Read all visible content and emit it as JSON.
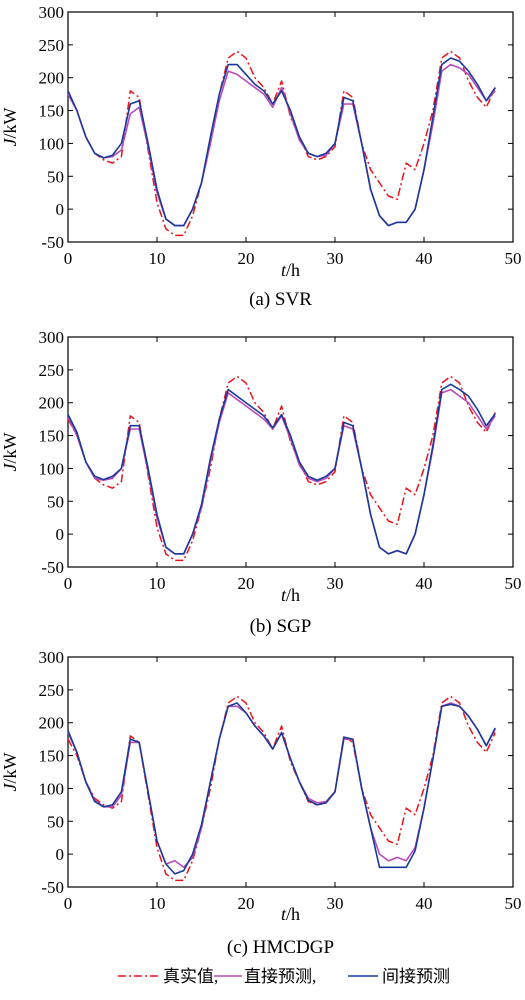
{
  "legend": {
    "entries": [
      {
        "label": "真实值,",
        "color": "#e8141c",
        "dash": "8,3,2,3"
      },
      {
        "label": "直接预测,",
        "color": "#b84cb8",
        "dash": ""
      },
      {
        "label": "间接预测",
        "color": "#1a3a9a",
        "dash": ""
      }
    ]
  },
  "chart_data": [
    {
      "type": "line",
      "caption": "(a)  SVR",
      "xlabel_italic": "t",
      "xlabel_unit": "/h",
      "ylabel_italic": "J",
      "ylabel_unit": "/kW",
      "xlim": [
        0,
        50
      ],
      "ylim": [
        -50,
        300
      ],
      "xticks": [
        0,
        10,
        20,
        30,
        40,
        50
      ],
      "yticks": [
        -50,
        0,
        50,
        100,
        150,
        200,
        250,
        300
      ],
      "series": [
        {
          "name": "真实值",
          "color": "#e8141c",
          "dash": "8,3,2,3",
          "x": [
            0,
            1,
            2,
            3,
            4,
            5,
            6,
            7,
            8,
            9,
            10,
            11,
            12,
            13,
            14,
            15,
            16,
            17,
            18,
            19,
            20,
            21,
            22,
            23,
            24,
            25,
            26,
            27,
            28,
            29,
            30,
            31,
            32,
            33,
            34,
            35,
            36,
            37,
            38,
            39,
            40,
            41,
            42,
            43,
            44,
            45,
            46,
            47,
            48
          ],
          "y": [
            175,
            150,
            110,
            85,
            75,
            70,
            80,
            180,
            170,
            90,
            10,
            -30,
            -40,
            -40,
            -10,
            40,
            100,
            175,
            230,
            240,
            230,
            200,
            185,
            160,
            195,
            140,
            110,
            80,
            75,
            80,
            95,
            180,
            170,
            100,
            60,
            40,
            20,
            15,
            70,
            60,
            100,
            150,
            230,
            240,
            230,
            195,
            170,
            155,
            185
          ]
        },
        {
          "name": "直接预测",
          "color": "#b84cb8",
          "dash": "",
          "x": [
            0,
            1,
            2,
            3,
            4,
            5,
            6,
            7,
            8,
            9,
            10,
            11,
            12,
            13,
            14,
            15,
            16,
            17,
            18,
            19,
            20,
            21,
            22,
            23,
            24,
            25,
            26,
            27,
            28,
            29,
            30,
            31,
            32,
            33,
            34,
            35,
            36,
            37,
            38,
            39,
            40,
            41,
            42,
            43,
            44,
            45,
            46,
            47,
            48
          ],
          "y": [
            175,
            150,
            110,
            85,
            78,
            80,
            90,
            145,
            155,
            95,
            25,
            -15,
            -25,
            -25,
            0,
            40,
            100,
            165,
            210,
            205,
            195,
            185,
            175,
            155,
            185,
            145,
            105,
            85,
            80,
            82,
            100,
            160,
            160,
            100,
            30,
            -10,
            -25,
            -20,
            -20,
            0,
            60,
            130,
            210,
            220,
            215,
            205,
            185,
            165,
            180
          ]
        },
        {
          "name": "间接预测",
          "color": "#1a3a9a",
          "dash": "",
          "x": [
            0,
            1,
            2,
            3,
            4,
            5,
            6,
            7,
            8,
            9,
            10,
            11,
            12,
            13,
            14,
            15,
            16,
            17,
            18,
            19,
            20,
            21,
            22,
            23,
            24,
            25,
            26,
            27,
            28,
            29,
            30,
            31,
            32,
            33,
            34,
            35,
            36,
            37,
            38,
            39,
            40,
            41,
            42,
            43,
            44,
            45,
            46,
            47,
            48
          ],
          "y": [
            180,
            150,
            110,
            85,
            78,
            82,
            100,
            160,
            165,
            100,
            30,
            -15,
            -25,
            -25,
            0,
            40,
            110,
            175,
            220,
            220,
            205,
            190,
            180,
            160,
            180,
            150,
            110,
            85,
            80,
            85,
            100,
            170,
            165,
            100,
            30,
            -10,
            -25,
            -20,
            -20,
            0,
            60,
            140,
            220,
            230,
            225,
            210,
            190,
            165,
            185
          ]
        }
      ]
    },
    {
      "type": "line",
      "caption": "(b)  SGP",
      "xlabel_italic": "t",
      "xlabel_unit": "/h",
      "ylabel_italic": "J",
      "ylabel_unit": "/kW",
      "xlim": [
        0,
        50
      ],
      "ylim": [
        -50,
        300
      ],
      "xticks": [
        0,
        10,
        20,
        30,
        40,
        50
      ],
      "yticks": [
        -50,
        0,
        50,
        100,
        150,
        200,
        250,
        300
      ],
      "series": [
        {
          "name": "真实值",
          "color": "#e8141c",
          "dash": "8,3,2,3",
          "x": [
            0,
            1,
            2,
            3,
            4,
            5,
            6,
            7,
            8,
            9,
            10,
            11,
            12,
            13,
            14,
            15,
            16,
            17,
            18,
            19,
            20,
            21,
            22,
            23,
            24,
            25,
            26,
            27,
            28,
            29,
            30,
            31,
            32,
            33,
            34,
            35,
            36,
            37,
            38,
            39,
            40,
            41,
            42,
            43,
            44,
            45,
            46,
            47,
            48
          ],
          "y": [
            175,
            150,
            110,
            85,
            75,
            70,
            80,
            180,
            170,
            90,
            10,
            -30,
            -40,
            -40,
            -10,
            40,
            100,
            175,
            230,
            240,
            230,
            200,
            185,
            160,
            195,
            140,
            110,
            80,
            75,
            80,
            95,
            180,
            170,
            100,
            60,
            40,
            20,
            15,
            70,
            60,
            100,
            150,
            230,
            240,
            230,
            195,
            170,
            155,
            185
          ]
        },
        {
          "name": "直接预测",
          "color": "#b84cb8",
          "dash": "",
          "x": [
            0,
            1,
            2,
            3,
            4,
            5,
            6,
            7,
            8,
            9,
            10,
            11,
            12,
            13,
            14,
            15,
            16,
            17,
            18,
            19,
            20,
            21,
            22,
            23,
            24,
            25,
            26,
            27,
            28,
            29,
            30,
            31,
            32,
            33,
            34,
            35,
            36,
            37,
            38,
            39,
            40,
            41,
            42,
            43,
            44,
            45,
            46,
            47,
            48
          ],
          "y": [
            178,
            150,
            110,
            85,
            82,
            85,
            100,
            160,
            160,
            95,
            25,
            -20,
            -30,
            -30,
            0,
            40,
            110,
            170,
            215,
            205,
            195,
            185,
            175,
            160,
            180,
            145,
            105,
            85,
            80,
            85,
            100,
            165,
            160,
            100,
            30,
            -20,
            -30,
            -25,
            -30,
            0,
            60,
            130,
            215,
            220,
            210,
            200,
            180,
            160,
            180
          ]
        },
        {
          "name": "间接预测",
          "color": "#1a3a9a",
          "dash": "",
          "x": [
            0,
            1,
            2,
            3,
            4,
            5,
            6,
            7,
            8,
            9,
            10,
            11,
            12,
            13,
            14,
            15,
            16,
            17,
            18,
            19,
            20,
            21,
            22,
            23,
            24,
            25,
            26,
            27,
            28,
            29,
            30,
            31,
            32,
            33,
            34,
            35,
            36,
            37,
            38,
            39,
            40,
            41,
            42,
            43,
            44,
            45,
            46,
            47,
            48
          ],
          "y": [
            182,
            155,
            110,
            88,
            83,
            88,
            100,
            165,
            165,
            100,
            30,
            -20,
            -30,
            -30,
            0,
            45,
            115,
            175,
            220,
            210,
            200,
            190,
            180,
            162,
            182,
            150,
            110,
            88,
            82,
            88,
            100,
            170,
            165,
            100,
            30,
            -20,
            -30,
            -25,
            -30,
            0,
            60,
            135,
            220,
            228,
            220,
            210,
            190,
            165,
            183
          ]
        }
      ]
    },
    {
      "type": "line",
      "caption": "(c)  HMCDGP",
      "xlabel_italic": "t",
      "xlabel_unit": "/h",
      "ylabel_italic": "J",
      "ylabel_unit": "/kW",
      "xlim": [
        0,
        50
      ],
      "ylim": [
        -50,
        300
      ],
      "xticks": [
        0,
        10,
        20,
        30,
        40,
        50
      ],
      "yticks": [
        -50,
        0,
        50,
        100,
        150,
        200,
        250,
        300
      ],
      "series": [
        {
          "name": "真实值",
          "color": "#e8141c",
          "dash": "8,3,2,3",
          "x": [
            0,
            1,
            2,
            3,
            4,
            5,
            6,
            7,
            8,
            9,
            10,
            11,
            12,
            13,
            14,
            15,
            16,
            17,
            18,
            19,
            20,
            21,
            22,
            23,
            24,
            25,
            26,
            27,
            28,
            29,
            30,
            31,
            32,
            33,
            34,
            35,
            36,
            37,
            38,
            39,
            40,
            41,
            42,
            43,
            44,
            45,
            46,
            47,
            48
          ],
          "y": [
            175,
            150,
            110,
            85,
            75,
            70,
            80,
            180,
            170,
            90,
            10,
            -30,
            -40,
            -40,
            -10,
            40,
            100,
            175,
            230,
            240,
            230,
            200,
            185,
            160,
            195,
            140,
            110,
            80,
            75,
            80,
            95,
            180,
            170,
            100,
            60,
            40,
            20,
            15,
            70,
            60,
            100,
            150,
            230,
            240,
            230,
            195,
            170,
            155,
            185
          ]
        },
        {
          "name": "直接预测",
          "color": "#b84cb8",
          "dash": "",
          "x": [
            0,
            1,
            2,
            3,
            4,
            5,
            6,
            7,
            8,
            9,
            10,
            11,
            12,
            13,
            14,
            15,
            16,
            17,
            18,
            19,
            20,
            21,
            22,
            23,
            24,
            25,
            26,
            27,
            28,
            29,
            30,
            31,
            32,
            33,
            34,
            35,
            36,
            37,
            38,
            39,
            40,
            41,
            42,
            43,
            44,
            45,
            46,
            47,
            48
          ],
          "y": [
            185,
            155,
            110,
            82,
            72,
            72,
            90,
            170,
            170,
            95,
            20,
            -15,
            -10,
            -20,
            -5,
            40,
            110,
            175,
            225,
            225,
            215,
            195,
            180,
            160,
            185,
            145,
            110,
            85,
            78,
            80,
            95,
            175,
            175,
            100,
            40,
            0,
            -10,
            -5,
            -10,
            10,
            70,
            145,
            225,
            230,
            225,
            210,
            190,
            165,
            190
          ]
        },
        {
          "name": "间接预测",
          "color": "#1a3a9a",
          "dash": "",
          "x": [
            0,
            1,
            2,
            3,
            4,
            5,
            6,
            7,
            8,
            9,
            10,
            11,
            12,
            13,
            14,
            15,
            16,
            17,
            18,
            19,
            20,
            21,
            22,
            23,
            24,
            25,
            26,
            27,
            28,
            29,
            30,
            31,
            32,
            33,
            34,
            35,
            36,
            37,
            38,
            39,
            40,
            41,
            42,
            43,
            44,
            45,
            46,
            47,
            48
          ],
          "y": [
            188,
            155,
            110,
            80,
            72,
            75,
            95,
            175,
            170,
            95,
            20,
            -15,
            -30,
            -25,
            0,
            45,
            110,
            175,
            225,
            230,
            215,
            195,
            180,
            160,
            185,
            145,
            110,
            82,
            75,
            78,
            95,
            178,
            175,
            100,
            40,
            -20,
            -20,
            -20,
            -20,
            5,
            70,
            145,
            225,
            228,
            225,
            210,
            190,
            165,
            192
          ]
        }
      ]
    }
  ]
}
